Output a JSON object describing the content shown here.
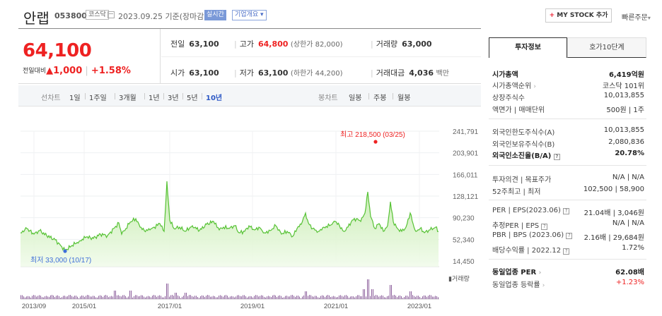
{
  "header": {
    "company_name": "안랩",
    "code": "053800",
    "market": "코스닥",
    "base_date": "2023.09.25  기준(장마감)",
    "realtime_label": "실시간",
    "overview_label": "기업개요",
    "mystock_label": "MY STOCK 추가",
    "quick_order_label": "빠른주문"
  },
  "price": {
    "current": "64,100",
    "change_label": "전일대비",
    "change_value": "1,000",
    "change_pct": "+1.58%",
    "prev_close_label": "전일",
    "prev_close": "63,100",
    "open_label": "시가",
    "open": "63,100",
    "high_label": "고가",
    "high": "64,800",
    "upper_limit": "(상한가 82,000)",
    "low_label": "저가",
    "low": "63,100",
    "lower_limit": "(하한가 44,200)",
    "volume_label": "거래량",
    "volume": "63,000",
    "amount_label": "거래대금",
    "amount": "4,036",
    "amount_unit": "백만"
  },
  "period_bar": {
    "line_chart_label": "선차트",
    "line_periods": [
      "1일",
      "1주일",
      "3개월",
      "1년",
      "3년",
      "5년",
      "10년"
    ],
    "active_period": "10년",
    "candle_chart_label": "봉차트",
    "candle_periods": [
      "일봉",
      "주봉",
      "월봉"
    ]
  },
  "right_panel": {
    "tab_invest": "투자정보",
    "tab_hoga": "호가10단계",
    "market_cap_label": "시가총액",
    "market_cap": "6,419억원",
    "cap_rank_label": "시가총액순위",
    "cap_rank": "코스닥 101위",
    "shares_label": "상장주식수",
    "shares": "10,013,855",
    "par_label": "액면가 | 매매단위",
    "par": "500원 | 1주",
    "foreign_limit_label": "외국인한도주식수(A)",
    "foreign_limit": "10,013,855",
    "foreign_hold_label": "외국인보유주식수(B)",
    "foreign_hold": "2,080,836",
    "foreign_ratio_label": "외국인소진율(B/A)",
    "foreign_ratio": "20.78%",
    "opinion_label": "투자의견 | 목표주가",
    "opinion": "N/A | N/A",
    "week52_label": "52주최고 | 최저",
    "week52": "102,500 | 58,900",
    "per_label": "PER | EPS(2023.06)",
    "per": "21.04배 | 3,046원",
    "est_per_label": "추정PER | EPS",
    "est_per": "N/A | N/A",
    "pbr_label": "PBR | BPS (2023.06)",
    "pbr": "2.16배 | 29,684원",
    "div_label": "배당수익률 | 2022.12",
    "div": "1.72%",
    "industry_per_label": "동일업종 PER",
    "industry_per": "62.08배",
    "industry_change_label": "동일업종 등락률",
    "industry_change": "+1.23%"
  },
  "chart_data": {
    "type": "line",
    "y_ticks": [
      "241,791",
      "203,901",
      "166,011",
      "128,121",
      "90,230",
      "52,340",
      "14,450"
    ],
    "x_ticks": [
      "2013/09",
      "2015/01",
      "2017/01",
      "2019/01",
      "2021/01",
      "2023/01"
    ],
    "high_label": "최고 218,500 (03/25)",
    "low_label": "최저 33,000 (10/17)",
    "volume_label": "거래량",
    "colors": {
      "line": "#56c234",
      "high": "#e22",
      "low": "#3f6fd8"
    }
  }
}
